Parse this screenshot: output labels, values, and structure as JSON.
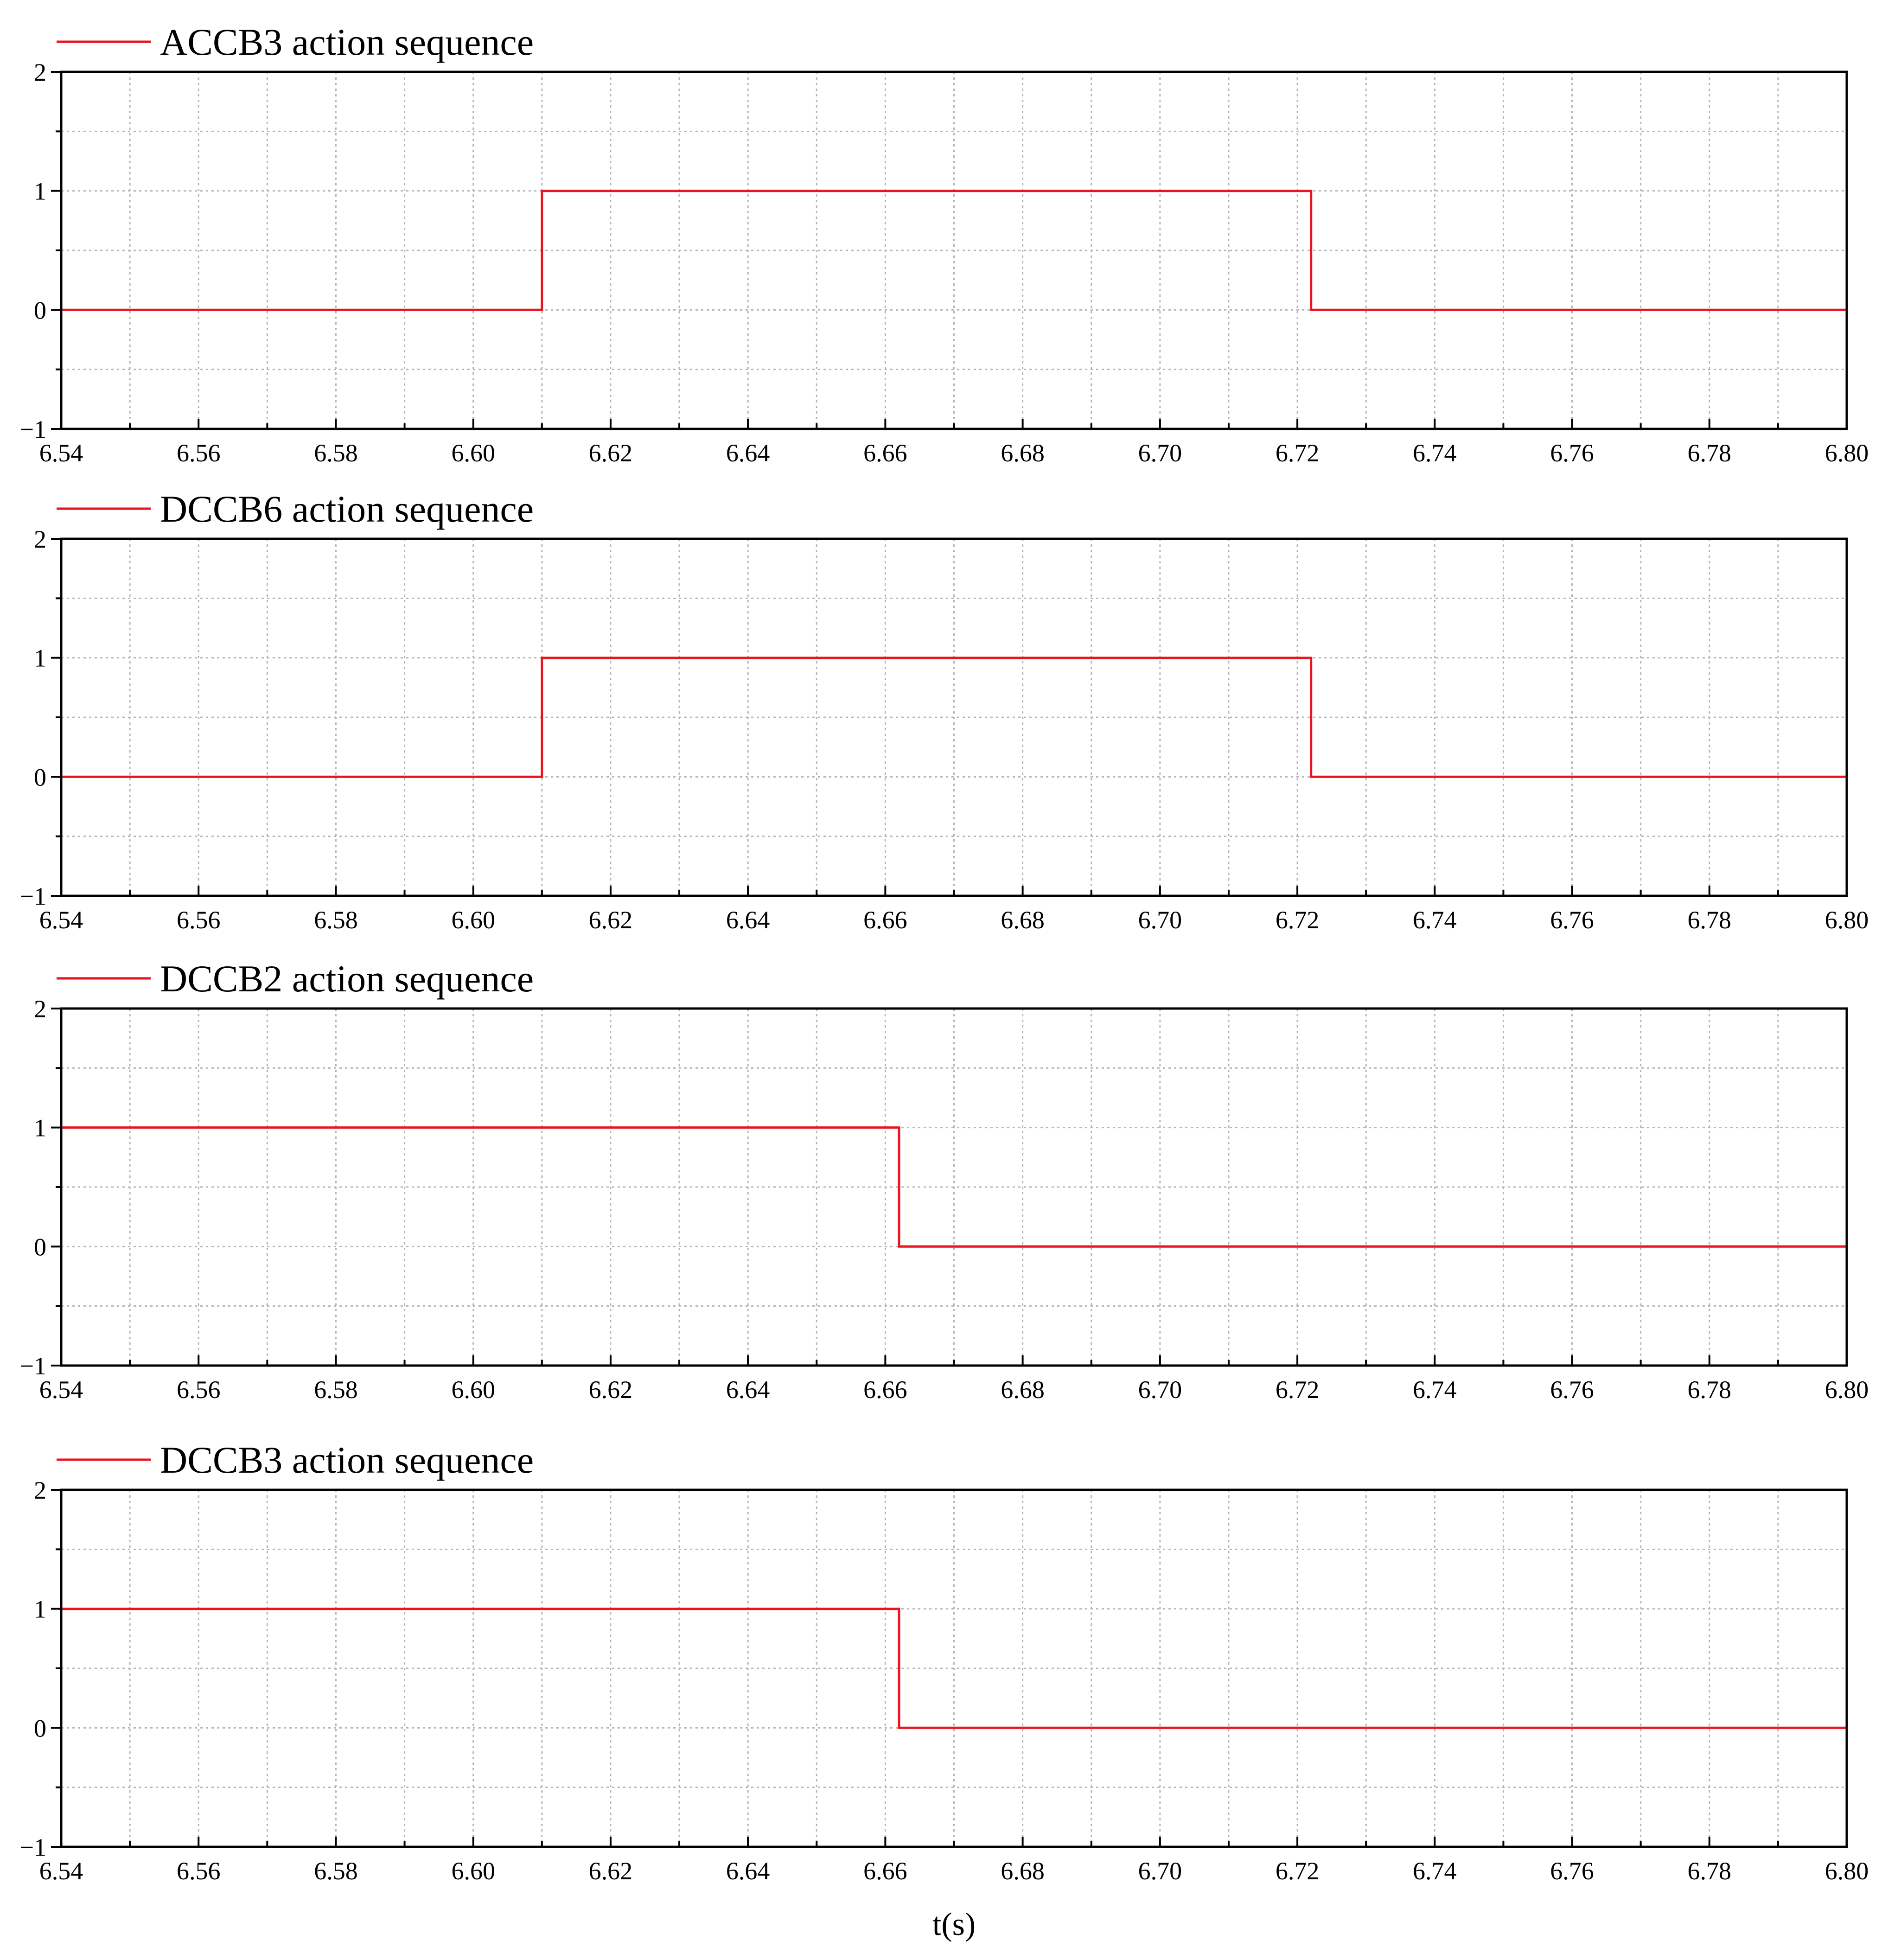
{
  "chart_data": [
    {
      "type": "line",
      "xlim": [
        6.54,
        6.8
      ],
      "ylim": [
        -1,
        2
      ],
      "x_ticks": [
        "6.54",
        "6.56",
        "6.58",
        "6.60",
        "6.62",
        "6.64",
        "6.66",
        "6.68",
        "6.70",
        "6.72",
        "6.74",
        "6.76",
        "6.78",
        "6.80"
      ],
      "y_ticks": [
        "−1",
        "0",
        "1",
        "2"
      ],
      "grid": true,
      "legend_position": "top-left",
      "series": [
        {
          "name": "ACCB3 action sequence",
          "color": "#e8141e",
          "step": true,
          "x": [
            6.54,
            6.61,
            6.61,
            6.722,
            6.722,
            6.8
          ],
          "y": [
            0,
            0,
            1,
            1,
            0,
            0
          ]
        }
      ]
    },
    {
      "type": "line",
      "xlim": [
        6.54,
        6.8
      ],
      "ylim": [
        -1,
        2
      ],
      "x_ticks": [
        "6.54",
        "6.56",
        "6.58",
        "6.60",
        "6.62",
        "6.64",
        "6.66",
        "6.68",
        "6.70",
        "6.72",
        "6.74",
        "6.76",
        "6.78",
        "6.80"
      ],
      "y_ticks": [
        "−1",
        "0",
        "1",
        "2"
      ],
      "grid": true,
      "legend_position": "top-left",
      "series": [
        {
          "name": "DCCB6 action sequence",
          "color": "#e8141e",
          "step": true,
          "x": [
            6.54,
            6.61,
            6.61,
            6.722,
            6.722,
            6.8
          ],
          "y": [
            0,
            0,
            1,
            1,
            0,
            0
          ]
        }
      ]
    },
    {
      "type": "line",
      "xlim": [
        6.54,
        6.8
      ],
      "ylim": [
        -1,
        2
      ],
      "x_ticks": [
        "6.54",
        "6.56",
        "6.58",
        "6.60",
        "6.62",
        "6.64",
        "6.66",
        "6.68",
        "6.70",
        "6.72",
        "6.74",
        "6.76",
        "6.78",
        "6.80"
      ],
      "y_ticks": [
        "−1",
        "0",
        "1",
        "2"
      ],
      "grid": true,
      "legend_position": "top-left",
      "series": [
        {
          "name": "DCCB2 action sequence",
          "color": "#e8141e",
          "step": true,
          "x": [
            6.54,
            6.662,
            6.662,
            6.8
          ],
          "y": [
            1,
            1,
            0,
            0
          ]
        }
      ]
    },
    {
      "type": "line",
      "xlim": [
        6.54,
        6.8
      ],
      "ylim": [
        -1,
        2
      ],
      "x_ticks": [
        "6.54",
        "6.56",
        "6.58",
        "6.60",
        "6.62",
        "6.64",
        "6.66",
        "6.68",
        "6.70",
        "6.72",
        "6.74",
        "6.76",
        "6.78",
        "6.80"
      ],
      "y_ticks": [
        "−1",
        "0",
        "1",
        "2"
      ],
      "grid": true,
      "legend_position": "top-left",
      "xlabel": "t(s)",
      "series": [
        {
          "name": "DCCB3 action sequence",
          "color": "#e8141e",
          "step": true,
          "x": [
            6.54,
            6.662,
            6.662,
            6.8
          ],
          "y": [
            1,
            1,
            0,
            0
          ]
        }
      ]
    }
  ]
}
